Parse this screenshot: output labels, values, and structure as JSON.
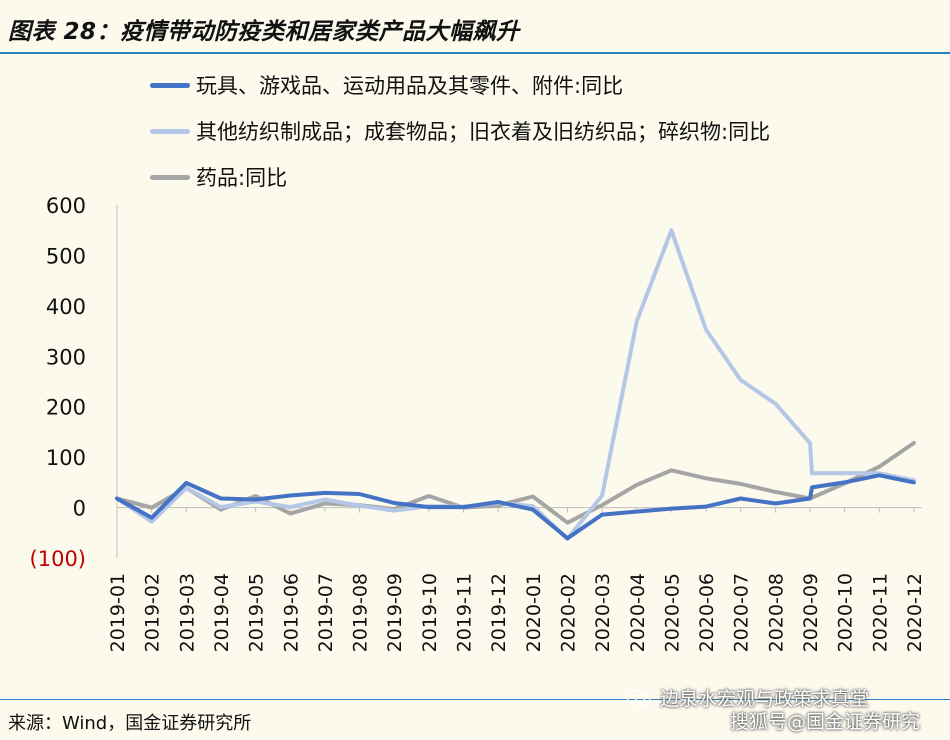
{
  "title": "图表 28：疫情带动防疫类和居家类产品大幅飙升",
  "source": "来源：Wind，国金证券研究所",
  "watermark": {
    "line1": "边泉水宏观与政策求真堂",
    "line2": "搜狐号@国金证券研究"
  },
  "colors": {
    "background": "#fcf9ed",
    "rule": "#2f7fc1",
    "negative_tick": "#c00000"
  },
  "chart_data": {
    "type": "line",
    "title": "",
    "xlabel": "",
    "ylabel": "",
    "ylim": [
      -100,
      600
    ],
    "y_ticks": [
      600,
      500,
      400,
      300,
      200,
      100,
      0,
      -100
    ],
    "y_tick_labels": [
      "600",
      "500",
      "400",
      "300",
      "200",
      "100",
      "0",
      "(100)"
    ],
    "legend_position": "top-left",
    "categories": [
      "2019-01",
      "2019-02",
      "2019-03",
      "2019-04",
      "2019-05",
      "2019-06",
      "2019-07",
      "2019-08",
      "2019-09",
      "2019-10",
      "2019-11",
      "2019-12",
      "2020-01",
      "2020-02",
      "2020-03",
      "2020-04",
      "2020-05",
      "2020-06",
      "2020-07",
      "2020-08",
      "2020-09",
      "2020-10",
      "2020-11",
      "2020-12"
    ],
    "series": [
      {
        "name": "玩具、游戏品、运动用品及其零件、附件:同比",
        "color": "#4472c4",
        "values": [
          18,
          -20,
          49,
          18,
          16,
          24,
          29,
          27,
          9,
          1,
          1,
          11,
          -4,
          -61,
          -14,
          -8,
          -2,
          2,
          18,
          8,
          18,
          50,
          64,
          50
        ],
        "extra_points": [
          [
            20,
            40
          ]
        ]
      },
      {
        "name": "其他纺织制成品；成套物品；旧衣着及旧纺织品；碎织物:同比",
        "color": "#b4c7e7",
        "values": [
          18,
          -28,
          39,
          1,
          12,
          1,
          16,
          4,
          -6,
          3,
          2,
          9,
          3,
          -62,
          24,
          370,
          550,
          353,
          253,
          206,
          128,
          68,
          68,
          54
        ],
        "extra_points": [
          [
            20,
            68
          ]
        ]
      },
      {
        "name": "药品:同比",
        "color": "#a5a5a5",
        "values": [
          18,
          0,
          39,
          -4,
          23,
          -12,
          8,
          5,
          -3,
          23,
          0,
          4,
          22,
          -30,
          5,
          45,
          74,
          58,
          47,
          31,
          18,
          48,
          81,
          128
        ]
      }
    ]
  }
}
